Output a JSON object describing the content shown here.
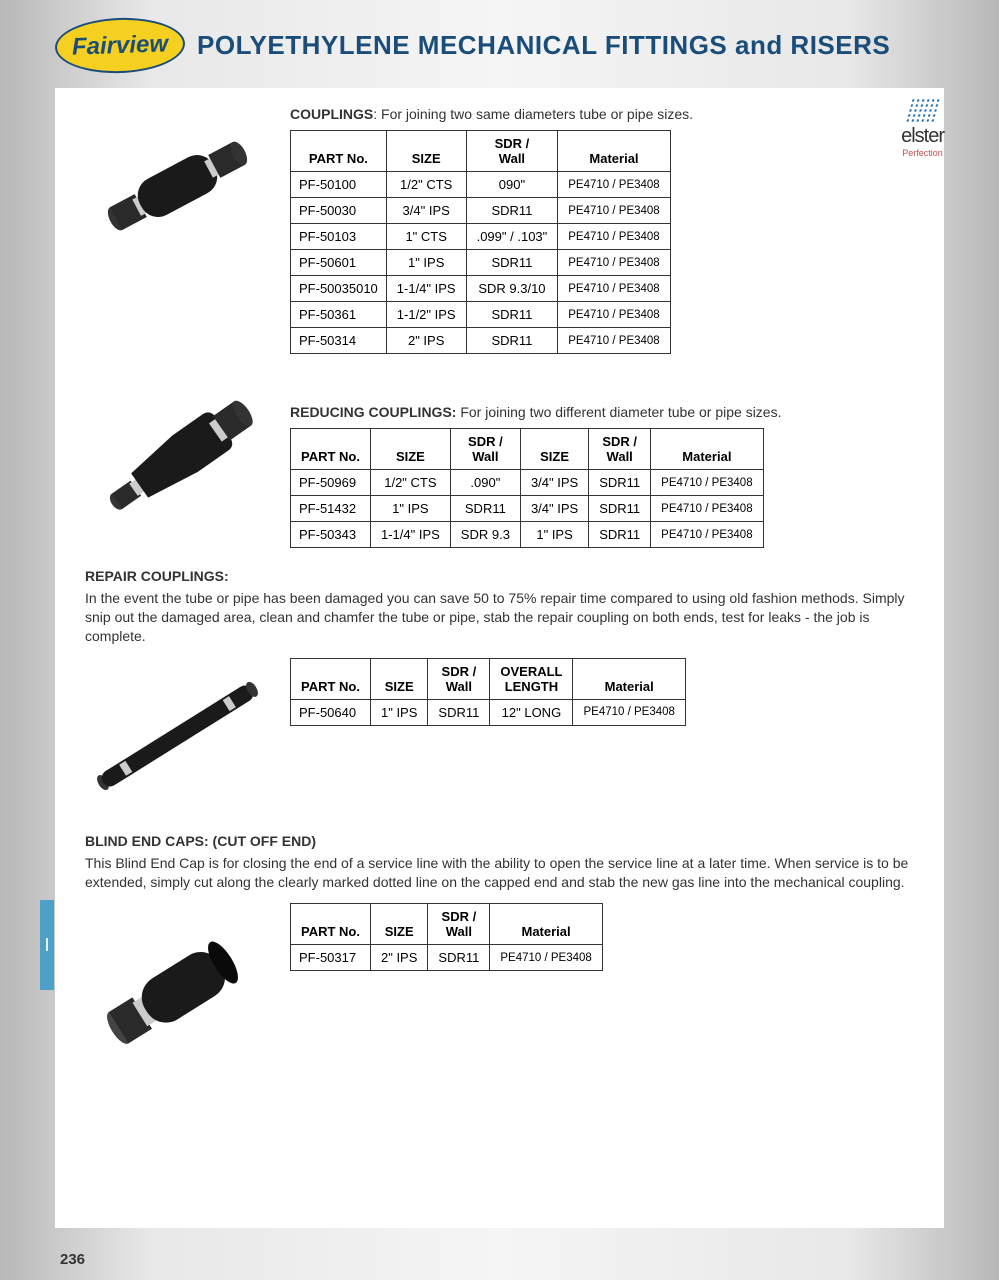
{
  "brand": "Fairview",
  "page_title": "POLYETHYLENE MECHANICAL FITTINGS and RISERS",
  "elster": {
    "name": "elster",
    "sub": "Perfection"
  },
  "couplings": {
    "title_bold": "COUPLINGS",
    "title_rest": ": For joining two same diameters tube or pipe sizes.",
    "headers": [
      "PART No.",
      "SIZE",
      "SDR / Wall",
      "Material"
    ],
    "rows": [
      [
        "PF-50100",
        "1/2\"   CTS",
        "090\"",
        "PE4710 / PE3408"
      ],
      [
        "PF-50030",
        "3/4\"   IPS",
        "SDR11",
        "PE4710 / PE3408"
      ],
      [
        "PF-50103",
        "1\"   CTS",
        ".099\" / .103\"",
        "PE4710 / PE3408"
      ],
      [
        "PF-50601",
        "1\"   IPS",
        "SDR11",
        "PE4710 / PE3408"
      ],
      [
        "PF-50035010",
        "1-1/4\"   IPS",
        "SDR 9.3/10",
        "PE4710 / PE3408"
      ],
      [
        "PF-50361",
        "1-1/2\"   IPS",
        "SDR11",
        "PE4710 / PE3408"
      ],
      [
        "PF-50314",
        "2\"   IPS",
        "SDR11",
        "PE4710 / PE3408"
      ]
    ]
  },
  "reducing": {
    "title_bold": "REDUCING COUPLINGS:",
    "title_rest": " For joining two different diameter tube or pipe sizes.",
    "headers": [
      "PART No.",
      "SIZE",
      "SDR / Wall",
      "SIZE",
      "SDR / Wall",
      "Material"
    ],
    "rows": [
      [
        "PF-50969",
        "1/2\"  CTS",
        ".090\"",
        "3/4\" IPS",
        "SDR11",
        "PE4710 / PE3408"
      ],
      [
        "PF-51432",
        "1\"   IPS",
        "SDR11",
        "3/4\" IPS",
        "SDR11",
        "PE4710 / PE3408"
      ],
      [
        "PF-50343",
        "1-1/4\"   IPS",
        "SDR 9.3",
        "1\" IPS",
        "SDR11",
        "PE4710 / PE3408"
      ]
    ]
  },
  "repair": {
    "heading": "REPAIR COUPLINGS:",
    "desc": "In the event the tube or pipe has been damaged you can save 50 to 75% repair time compared to using old fashion methods.  Simply snip out the damaged area, clean and chamfer the tube or pipe, stab the repair coupling on both ends, test for leaks - the job is complete.",
    "headers": [
      "PART No.",
      "SIZE",
      "SDR / Wall",
      "OVERALL LENGTH",
      "Material"
    ],
    "rows": [
      [
        "PF-50640",
        "1\"   IPS",
        "SDR11",
        "12\" LONG",
        "PE4710 / PE3408"
      ]
    ]
  },
  "blind": {
    "heading": "BLIND END CAPS: (CUT OFF END)",
    "desc": "This Blind End Cap is for closing the end of a service line with the ability to open the service line at a later time.  When service is to be extended, simply cut along the clearly marked dotted line on the capped end and stab the new gas line into the mechanical coupling.",
    "headers": [
      "PART No.",
      "SIZE",
      "SDR / Wall",
      "Material"
    ],
    "rows": [
      [
        "PF-50317",
        "2\"   IPS",
        "SDR11",
        "PE4710 / PE3408"
      ]
    ]
  },
  "side_tab": "I",
  "page_number": "236"
}
